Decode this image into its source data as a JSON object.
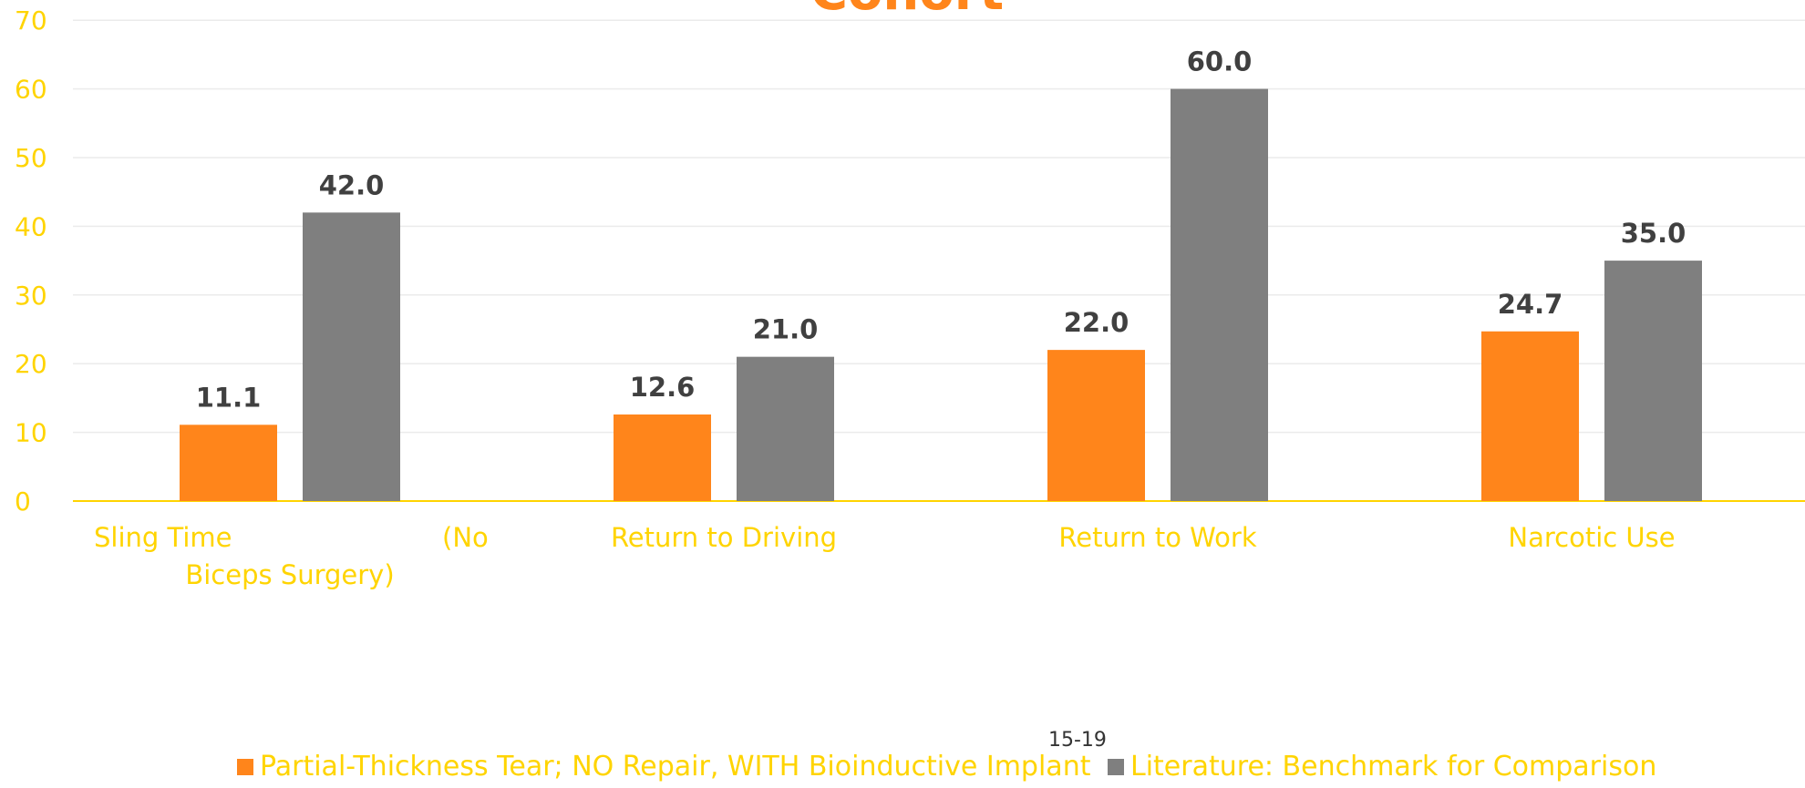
{
  "chart_data": {
    "type": "bar",
    "title": "Cohort",
    "categories": [
      "Sling Time (No Biceps Surgery)",
      "Return to Driving",
      "Return to Work",
      "Narcotic Use"
    ],
    "category_lines": [
      [
        "Sling Time                        (No",
        "Biceps Surgery)"
      ],
      [
        "Return to Driving"
      ],
      [
        "Return to Work"
      ],
      [
        "Narcotic Use"
      ]
    ],
    "series": [
      {
        "name": "Partial-Thickness Tear; NO Repair, WITH Bioinductive Implant",
        "values": [
          11.1,
          12.6,
          22.0,
          24.7
        ],
        "color": "#FF851B"
      },
      {
        "name": "Literature: Benchmark for Comparison",
        "values": [
          42.0,
          21.0,
          60.0,
          35.0
        ],
        "color": "#7F7F7F"
      }
    ],
    "data_labels": [
      [
        "11.1",
        "12.6",
        "22.0",
        "24.7"
      ],
      [
        "42.0",
        "21.0",
        "60.0",
        "35.0"
      ]
    ],
    "ylim": [
      0,
      70
    ],
    "yticks": [
      "0",
      "10",
      "20",
      "30",
      "40",
      "50",
      "60",
      "70"
    ],
    "grid": true,
    "legend_position": "bottom",
    "footnote": "15-19",
    "colors": {
      "axis_text": "#FFD400",
      "title": "#FF851B",
      "data_label": "#404040",
      "gridline": "#EBEBEB",
      "axis_line": "#FFD400"
    }
  }
}
